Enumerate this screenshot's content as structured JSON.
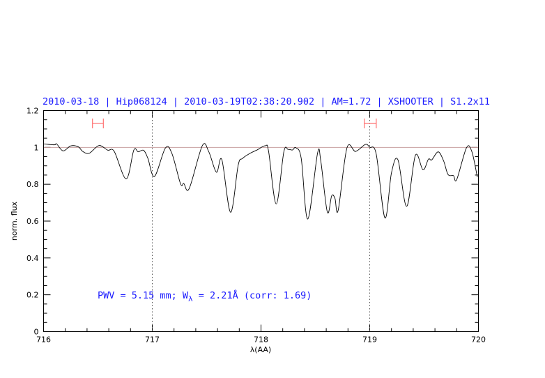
{
  "chart_data": {
    "type": "line",
    "title": "2010-03-18 | Hip068124 | 2010-03-19T02:38:20.902 | AM=1.72 | XSHOOTER | S1.2x11",
    "xlabel": "λ(AA)",
    "ylabel": "norm. flux",
    "xlim": [
      716,
      720
    ],
    "ylim": [
      0,
      1.2
    ],
    "xticks": [
      "716",
      "717",
      "718",
      "719",
      "720"
    ],
    "yticks": [
      "0",
      "0.2",
      "0.4",
      "0.6",
      "0.8",
      "1",
      "1.2"
    ],
    "grid": false,
    "reference_line": 1.0,
    "vertical_markers": [
      717,
      719
    ],
    "ranges": [
      [
        716.45,
        716.55
      ],
      [
        718.95,
        719.06
      ]
    ],
    "annotation": {
      "main": "PWV = 5.15 mm; W",
      "sub": "λ",
      "rest": " = 2.21Å (corr: 1.69)"
    },
    "colors": {
      "spectrum": "#000000",
      "title": "#1a1aff",
      "reference": "#c8a0a0",
      "ranges": "#ff7070",
      "markers": "#555555"
    },
    "series": [
      {
        "x": [
          716.0,
          716.1,
          716.12,
          716.18,
          716.25,
          716.32,
          716.36,
          716.42,
          716.51,
          716.59,
          716.65,
          716.76,
          716.83,
          716.87,
          716.92,
          716.96,
          717.02,
          717.12,
          717.18,
          717.26,
          717.29,
          717.34,
          717.46,
          717.52,
          717.59,
          717.64,
          717.72,
          717.79,
          717.83,
          717.9,
          717.96,
          718.04,
          718.07,
          718.14,
          718.21,
          718.25,
          718.29,
          718.32,
          718.37,
          718.43,
          718.52,
          718.55,
          718.61,
          718.65,
          718.68,
          718.71,
          718.79,
          718.87,
          718.96,
          719.0,
          719.06,
          719.14,
          719.2,
          719.26,
          719.34,
          719.42,
          719.49,
          719.54,
          719.57,
          719.63,
          719.68,
          719.72,
          719.77,
          719.8,
          719.89,
          719.94,
          719.99
        ],
        "y": [
          1.019,
          1.014,
          1.019,
          0.981,
          1.008,
          1.003,
          0.978,
          0.968,
          1.01,
          0.985,
          0.978,
          0.829,
          0.985,
          0.976,
          0.984,
          0.94,
          0.842,
          0.996,
          0.968,
          0.802,
          0.804,
          0.777,
          1.009,
          0.976,
          0.865,
          0.933,
          0.648,
          0.903,
          0.94,
          0.968,
          0.985,
          1.009,
          0.978,
          0.693,
          0.976,
          0.989,
          0.986,
          0.998,
          0.94,
          0.611,
          0.968,
          0.926,
          0.649,
          0.737,
          0.724,
          0.659,
          0.996,
          0.978,
          1.016,
          1.001,
          0.963,
          0.617,
          0.862,
          0.932,
          0.68,
          0.957,
          0.878,
          0.936,
          0.932,
          0.976,
          0.926,
          0.853,
          0.847,
          0.825,
          0.998,
          0.976,
          0.838
        ]
      }
    ]
  }
}
